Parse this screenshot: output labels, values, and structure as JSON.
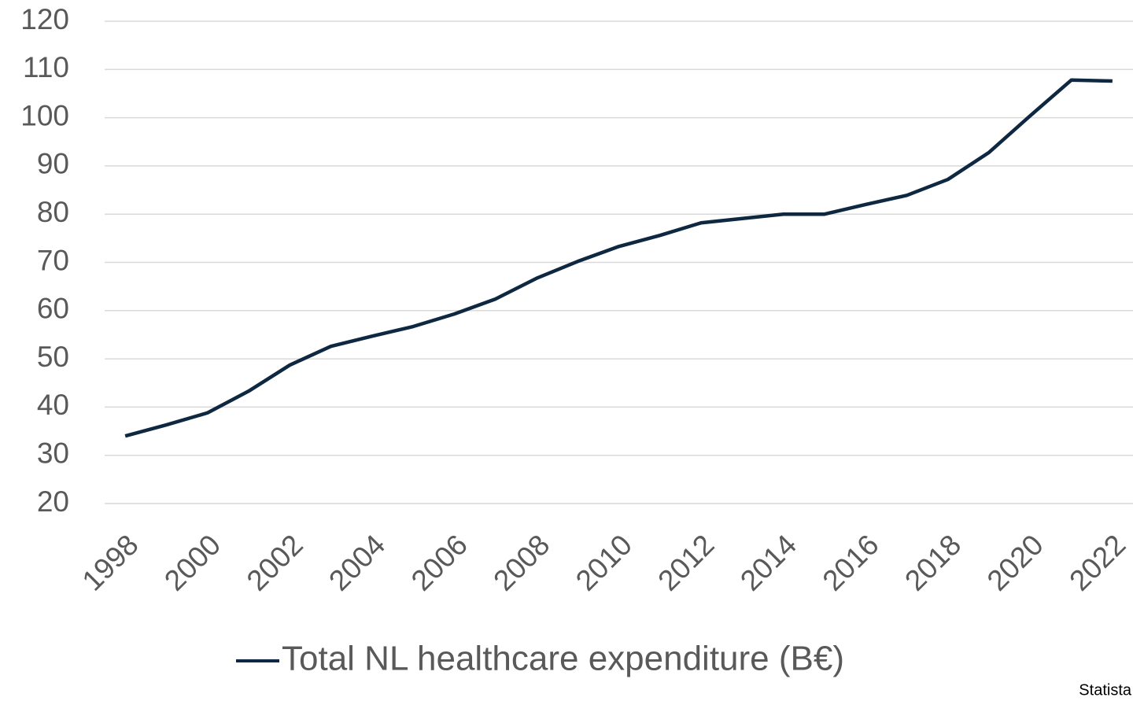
{
  "chart_data": {
    "type": "line",
    "x": [
      1998,
      1999,
      2000,
      2001,
      2002,
      2003,
      2004,
      2005,
      2006,
      2007,
      2008,
      2009,
      2010,
      2011,
      2012,
      2013,
      2014,
      2015,
      2016,
      2017,
      2018,
      2019,
      2020,
      2021,
      2022
    ],
    "series": [
      {
        "name": "Total NL healthcare expenditure (B€)",
        "color": "#0e2841",
        "values": [
          34.0,
          36.3,
          38.8,
          43.3,
          48.7,
          52.6,
          54.7,
          56.7,
          59.3,
          62.4,
          66.7,
          70.2,
          73.3,
          75.6,
          78.2,
          79.1,
          80.0,
          80.0,
          82.0,
          83.9,
          87.2,
          92.8,
          100.4,
          107.8,
          107.6
        ]
      }
    ],
    "xlim": [
      1997.5,
      2022.5
    ],
    "xticks": [
      1998,
      2000,
      2002,
      2004,
      2006,
      2008,
      2010,
      2012,
      2014,
      2016,
      2018,
      2020,
      2022
    ],
    "ylim": [
      20,
      120
    ],
    "yticks": [
      20,
      30,
      40,
      50,
      60,
      70,
      80,
      90,
      100,
      110,
      120
    ],
    "grid": true,
    "legend": "bottom",
    "source": "Statista"
  }
}
